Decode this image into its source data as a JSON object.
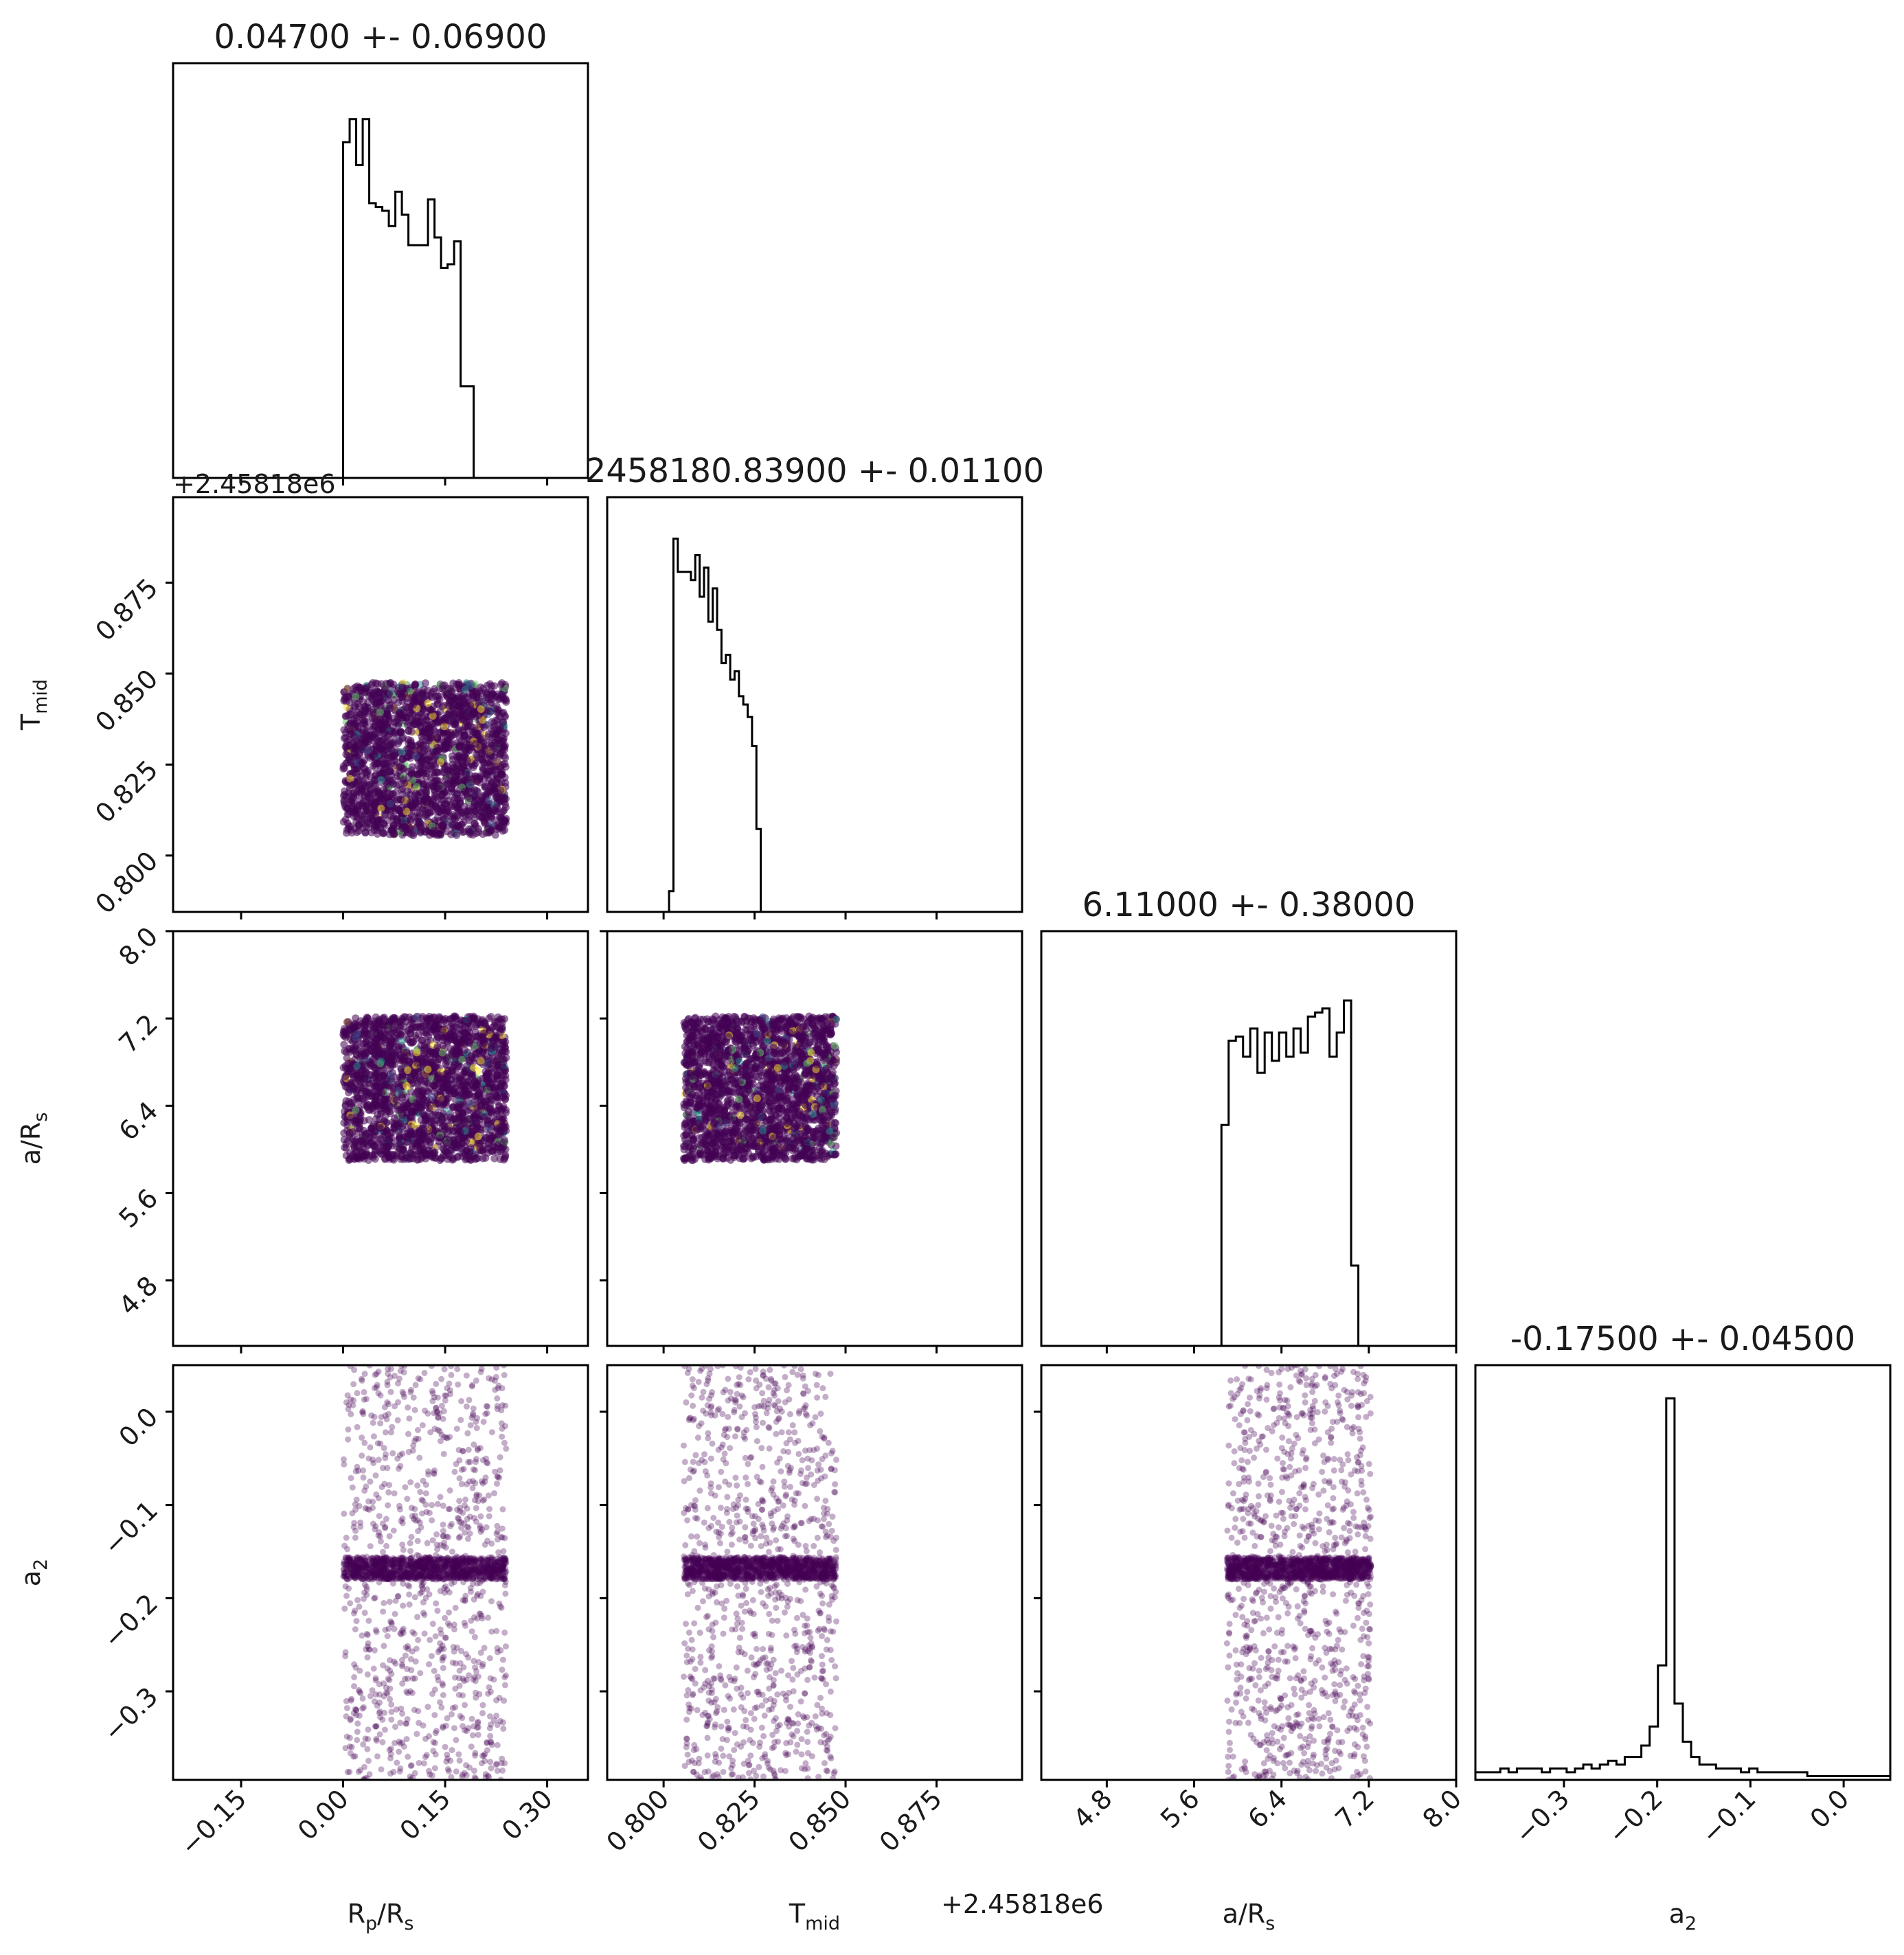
{
  "chart_data": {
    "type": "corner",
    "parameters": [
      {
        "key": "rp",
        "axis_label": "R",
        "axis_sub": "p",
        "axis_label_tail": "/R",
        "axis_sub_tail": "s",
        "title": "0.04700 +- 0.06900",
        "range": [
          -0.25,
          0.36
        ],
        "ticks": [
          "−0.15",
          "0.00",
          "0.15",
          "0.30"
        ],
        "tick_values": [
          -0.15,
          0.0,
          0.15,
          0.3
        ],
        "sample_range": [
          0.0,
          0.24
        ],
        "offset_text": ""
      },
      {
        "key": "tmid",
        "axis_label": "T",
        "axis_sub": "mid",
        "axis_label_tail": "",
        "axis_sub_tail": "",
        "title": "2458180.83900 +- 0.01100",
        "range": [
          0.7845,
          0.8985
        ],
        "ticks": [
          "0.800",
          "0.825",
          "0.850",
          "0.875"
        ],
        "tick_values": [
          0.8,
          0.825,
          0.85,
          0.875
        ],
        "sample_range": [
          0.8055,
          0.8475
        ],
        "offset_text": "+2.45818e6"
      },
      {
        "key": "ars",
        "axis_label": "a/R",
        "axis_sub": "s",
        "axis_label_tail": "",
        "axis_sub_tail": "",
        "title": "6.11000 +- 0.38000",
        "range": [
          4.2,
          8.0
        ],
        "ticks": [
          "4.8",
          "5.6",
          "6.4",
          "7.2",
          "8.0"
        ],
        "tick_values": [
          4.8,
          5.6,
          6.4,
          7.2,
          8.0
        ],
        "sample_range": [
          5.9,
          7.22
        ],
        "offset_text": ""
      },
      {
        "key": "a2",
        "axis_label": "a",
        "axis_sub": "2",
        "axis_label_tail": "",
        "axis_sub_tail": "",
        "title": "-0.17500 +- 0.04500",
        "range": [
          -0.395,
          0.05
        ],
        "ticks": [
          "−0.3",
          "−0.2",
          "−0.1",
          "0.0"
        ],
        "tick_values": [
          -0.3,
          -0.2,
          -0.1,
          0.0
        ],
        "sample_range": [
          -0.395,
          0.05
        ],
        "offset_text": ""
      }
    ],
    "histograms": {
      "rp": {
        "edges_start": 0.0,
        "bin_width": 0.0048,
        "counts": [
          0.88,
          0.88,
          0.94,
          0.94,
          0.82,
          0.82,
          0.94,
          0.94,
          0.72,
          0.72,
          0.71,
          0.71,
          0.7,
          0.7,
          0.66,
          0.66,
          0.75,
          0.75,
          0.69,
          0.69,
          0.61,
          0.61,
          0.61,
          0.61,
          0.61,
          0.61,
          0.73,
          0.73,
          0.63,
          0.63,
          0.55,
          0.55,
          0.56,
          0.56,
          0.62,
          0.62,
          0.24,
          0.24,
          0.24,
          0.24
        ],
        "max": 1.0
      },
      "tmid": {
        "edges_start": 0.8015,
        "bin_width": 0.0012,
        "counts": [
          0.05,
          0.9,
          0.82,
          0.82,
          0.82,
          0.8,
          0.86,
          0.76,
          0.83,
          0.7,
          0.78,
          0.68,
          0.6,
          0.62,
          0.56,
          0.58,
          0.52,
          0.5,
          0.47,
          0.4,
          0.2,
          0.0
        ],
        "max": 0.92
      },
      "ars": {
        "edges_start": 5.85,
        "bin_width": 0.066,
        "counts": [
          0.55,
          0.76,
          0.77,
          0.72,
          0.79,
          0.68,
          0.78,
          0.71,
          0.78,
          0.72,
          0.79,
          0.73,
          0.82,
          0.83,
          0.84,
          0.72,
          0.78,
          0.86,
          0.2,
          0.0
        ],
        "max": 0.95
      },
      "a2": {
        "edges_start": -0.395,
        "bin_width": 0.0089,
        "counts": [
          0.02,
          0.02,
          0.02,
          0.03,
          0.02,
          0.03,
          0.03,
          0.03,
          0.02,
          0.03,
          0.03,
          0.02,
          0.03,
          0.04,
          0.03,
          0.04,
          0.05,
          0.04,
          0.06,
          0.06,
          0.09,
          0.14,
          0.3,
          1.0,
          0.2,
          0.1,
          0.06,
          0.04,
          0.04,
          0.03,
          0.03,
          0.03,
          0.02,
          0.03,
          0.02,
          0.02,
          0.02,
          0.02,
          0.02,
          0.02,
          0.01,
          0.01,
          0.01,
          0.01,
          0.01,
          0.01,
          0.01,
          0.01,
          0.01,
          0.01
        ],
        "max": 1.0
      }
    },
    "scatter": {
      "n_points": 2200,
      "point_color": "#440154",
      "highlight_colors": [
        "#21918c",
        "#fde725",
        "#5ec962",
        "#3b528b"
      ],
      "a2_band_center": -0.168,
      "a2_band_halfwidth": 0.012
    },
    "grid": false
  }
}
